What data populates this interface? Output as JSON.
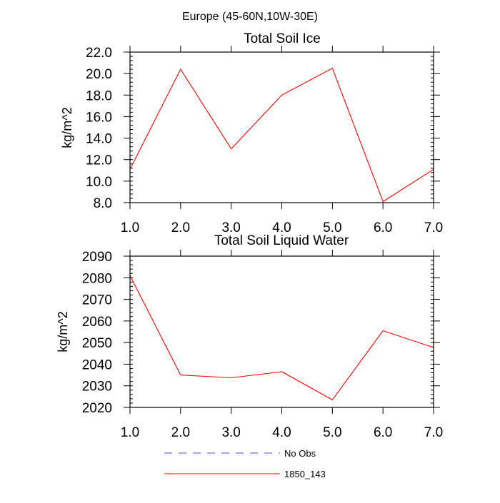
{
  "figure_title": "Europe (45-60N,10W-30E)",
  "legend": [
    {
      "label": "No Obs",
      "color": "#4b4bd0",
      "dash": true
    },
    {
      "label": "1850_143",
      "color": "#ff0000",
      "dash": false
    }
  ],
  "chart_data": [
    {
      "type": "line",
      "title": "Total Soil Ice",
      "xlabel": "",
      "ylabel": "kg/m^2",
      "x": [
        1,
        2,
        3,
        4,
        5,
        6,
        7
      ],
      "xlim": [
        1,
        7
      ],
      "ylim": [
        8,
        22
      ],
      "xticks": [
        1,
        2,
        3,
        4,
        5,
        6,
        7
      ],
      "xtick_labels": [
        "1.0",
        "2.0",
        "3.0",
        "4.0",
        "5.0",
        "6.0",
        "7.0"
      ],
      "yticks": [
        8,
        10,
        12,
        14,
        16,
        18,
        20,
        22
      ],
      "ytick_labels": [
        "8.0",
        "10.0",
        "12.0",
        "14.0",
        "16.0",
        "18.0",
        "20.0",
        "22.0"
      ],
      "yminor_step": 0.4,
      "series": [
        {
          "name": "1850_143",
          "color": "#ff0000",
          "values": [
            11.1,
            20.4,
            13.0,
            18.0,
            20.5,
            8.1,
            11.1
          ]
        }
      ]
    },
    {
      "type": "line",
      "title": "Total Soil Liquid Water",
      "xlabel": "",
      "ylabel": "kg/m^2",
      "x": [
        1,
        2,
        3,
        4,
        5,
        6,
        7
      ],
      "xlim": [
        1,
        7
      ],
      "ylim": [
        2020,
        2090
      ],
      "xticks": [
        1,
        2,
        3,
        4,
        5,
        6,
        7
      ],
      "xtick_labels": [
        "1.0",
        "2.0",
        "3.0",
        "4.0",
        "5.0",
        "6.0",
        "7.0"
      ],
      "yticks": [
        2020,
        2030,
        2040,
        2050,
        2060,
        2070,
        2080,
        2090
      ],
      "ytick_labels": [
        "2020",
        "2030",
        "2040",
        "2050",
        "2060",
        "2070",
        "2080",
        "2090"
      ],
      "yminor_step": 2,
      "series": [
        {
          "name": "1850_143",
          "color": "#ff0000",
          "values": [
            2081.0,
            2035.0,
            2033.7,
            2036.5,
            2023.5,
            2055.5,
            2047.7
          ]
        }
      ]
    }
  ]
}
